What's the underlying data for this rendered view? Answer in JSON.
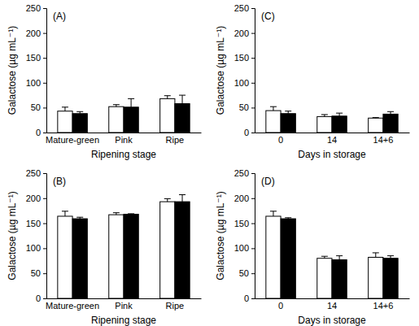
{
  "chart_data": [
    {
      "type": "bar",
      "title": "(A)",
      "x_label": "Ripening stage",
      "y_label": "Galactose (µg mL⁻¹)",
      "categories": [
        "Mature-green",
        "Pink",
        "Ripe"
      ],
      "series": [
        {
          "color": "#ffffff",
          "values": [
            43,
            52,
            68
          ],
          "errors": [
            8,
            4,
            6
          ]
        },
        {
          "color": "#000000",
          "values": [
            38,
            51,
            58
          ],
          "errors": [
            4,
            17,
            17
          ]
        }
      ],
      "ylim": [
        0,
        250
      ],
      "yticks": [
        0,
        50,
        100,
        150,
        200,
        250
      ]
    },
    {
      "type": "bar",
      "title": "(B)",
      "x_label": "Ripening stage",
      "y_label": "Galactose (µg mL⁻¹)",
      "categories": [
        "Mature-green",
        "Pink",
        "Ripe"
      ],
      "series": [
        {
          "color": "#ffffff",
          "values": [
            164,
            167,
            193
          ],
          "errors": [
            10,
            4,
            6
          ]
        },
        {
          "color": "#000000",
          "values": [
            159,
            168,
            193
          ],
          "errors": [
            3,
            1,
            14
          ]
        }
      ],
      "ylim": [
        0,
        250
      ],
      "yticks": [
        0,
        50,
        100,
        150,
        200,
        250
      ]
    },
    {
      "type": "bar",
      "title": "(C)",
      "x_label": "Days in storage",
      "y_label": "Galactose (µg mL⁻¹)",
      "categories": [
        "0",
        "14",
        "14+6"
      ],
      "series": [
        {
          "color": "#ffffff",
          "values": [
            44,
            32,
            29
          ],
          "errors": [
            8,
            4,
            1
          ]
        },
        {
          "color": "#000000",
          "values": [
            38,
            33,
            37
          ],
          "errors": [
            5,
            6,
            5
          ]
        }
      ],
      "ylim": [
        0,
        250
      ],
      "yticks": [
        0,
        50,
        100,
        150,
        200,
        250
      ]
    },
    {
      "type": "bar",
      "title": "(D)",
      "x_label": "Days in storage",
      "y_label": "Galactose (µg mL⁻¹)",
      "categories": [
        "0",
        "14",
        "14+6"
      ],
      "series": [
        {
          "color": "#ffffff",
          "values": [
            164,
            80,
            82
          ],
          "errors": [
            10,
            4,
            9
          ]
        },
        {
          "color": "#000000",
          "values": [
            159,
            77,
            80
          ],
          "errors": [
            2,
            8,
            5
          ]
        }
      ],
      "ylim": [
        0,
        250
      ],
      "yticks": [
        0,
        50,
        100,
        150,
        200,
        250
      ]
    }
  ]
}
